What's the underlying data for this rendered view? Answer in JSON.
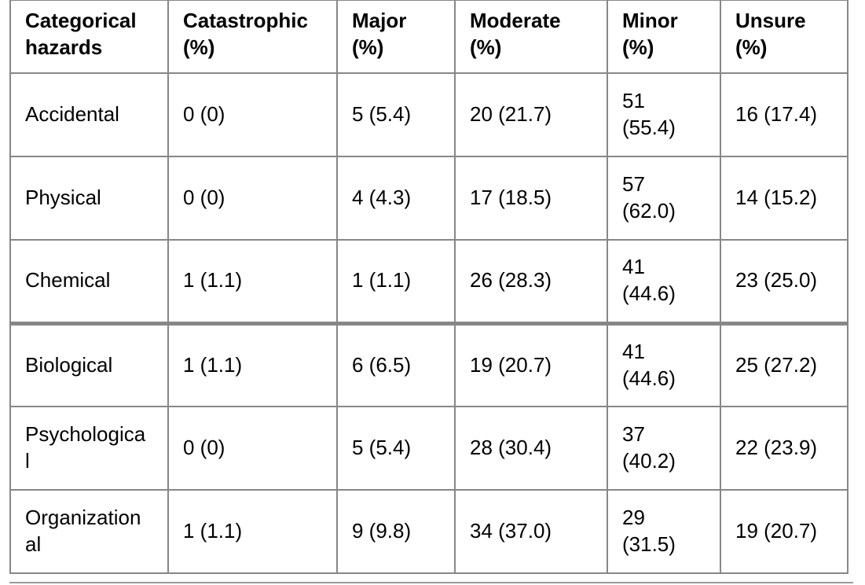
{
  "colors": {
    "table_border": "#878787",
    "text": "#000000",
    "background": "#ffffff"
  },
  "table": {
    "columns": [
      "Categorical hazards",
      "Catastrophic (%)",
      "Major (%)",
      "Moderate (%)",
      "Minor (%)",
      "Unsure (%)"
    ],
    "rows": [
      {
        "cells": [
          "Accidental",
          "0 (0)",
          "5 (5.4)",
          "20 (21.7)",
          "51 (55.4)",
          "16 (17.4)"
        ]
      },
      {
        "cells": [
          "Physical",
          "0 (0)",
          "4 (4.3)",
          "17 (18.5)",
          "57 (62.0)",
          "14 (15.2)"
        ]
      },
      {
        "cells": [
          "Chemical",
          "1 (1.1)",
          "1 (1.1)",
          "26 (28.3)",
          "41 (44.6)",
          "23 (25.0)"
        ]
      },
      {
        "cells": [
          "Biological",
          "1 (1.1)",
          "6 (6.5)",
          "19 (20.7)",
          "41 (44.6)",
          "25 (27.2)"
        ]
      },
      {
        "cells": [
          "Psychological",
          "0 (0)",
          "5 (5.4)",
          "28 (30.4)",
          "37 (40.2)",
          "22 (23.9)"
        ]
      },
      {
        "cells": [
          "Organizational",
          "1 (1.1)",
          "9 (9.8)",
          "34 (37.0)",
          "29 (31.5)",
          "19 (20.7)"
        ]
      }
    ]
  }
}
